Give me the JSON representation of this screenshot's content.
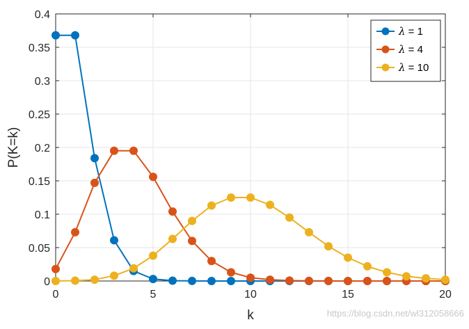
{
  "chart_data": {
    "type": "line",
    "xlabel": "k",
    "ylabel": "P(K=k)",
    "xlim": [
      0,
      20
    ],
    "ylim": [
      0,
      0.4
    ],
    "x_ticks": [
      0,
      5,
      10,
      15,
      20
    ],
    "x_tick_labels": [
      "0",
      "5",
      "10",
      "15",
      "20"
    ],
    "y_ticks": [
      0,
      0.05,
      0.1,
      0.15,
      0.2,
      0.25,
      0.3,
      0.35,
      0.4
    ],
    "y_tick_labels": [
      "0",
      "0.05",
      "0.1",
      "0.15",
      "0.2",
      "0.25",
      "0.3",
      "0.35",
      "0.4"
    ],
    "grid": true,
    "legend_position": "top-right",
    "x": [
      0,
      1,
      2,
      3,
      4,
      5,
      6,
      7,
      8,
      9,
      10,
      11,
      12,
      13,
      14,
      15,
      16,
      17,
      18,
      19,
      20
    ],
    "series": [
      {
        "name_symbol": "λ",
        "name_value": " = 1",
        "color": "#0072BD",
        "values": [
          0.368,
          0.368,
          0.184,
          0.061,
          0.015,
          0.003,
          0.0005,
          0.0001,
          0,
          0,
          0,
          0,
          0,
          0,
          0,
          0,
          0,
          0,
          0,
          0,
          0
        ]
      },
      {
        "name_symbol": "λ",
        "name_value": " = 4",
        "color": "#D95319",
        "values": [
          0.018,
          0.073,
          0.147,
          0.195,
          0.195,
          0.156,
          0.104,
          0.06,
          0.03,
          0.013,
          0.005,
          0.002,
          0.0006,
          0.0002,
          0.0001,
          0,
          0,
          0,
          0,
          0,
          0
        ]
      },
      {
        "name_symbol": "λ",
        "name_value": " = 10",
        "color": "#EDB120",
        "values": [
          5e-05,
          0.0005,
          0.002,
          0.008,
          0.019,
          0.038,
          0.063,
          0.09,
          0.113,
          0.125,
          0.125,
          0.114,
          0.095,
          0.073,
          0.052,
          0.035,
          0.022,
          0.013,
          0.007,
          0.004,
          0.002
        ]
      }
    ]
  },
  "watermark": "https://blog.csdn.net/wl312058666"
}
